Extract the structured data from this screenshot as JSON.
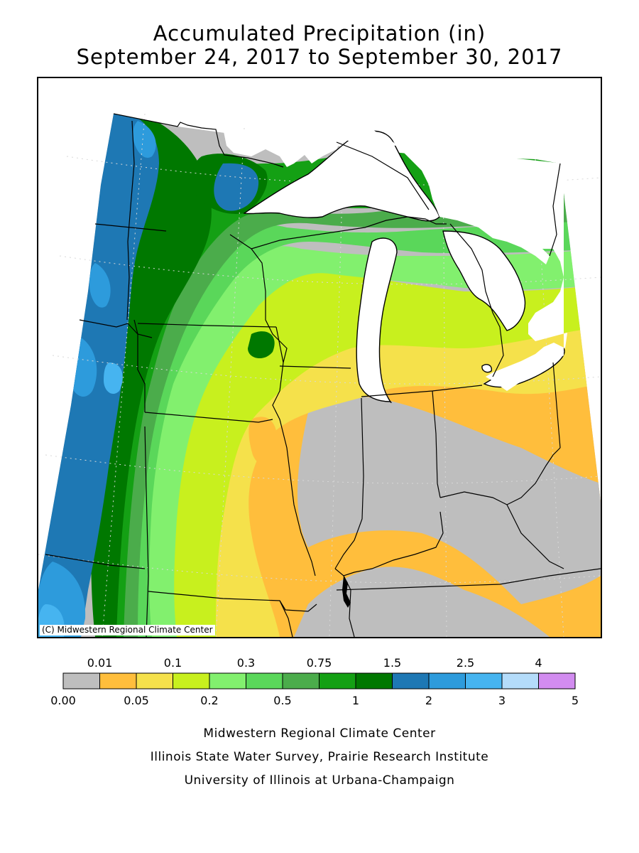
{
  "title": "Accumulated Precipitation (in)",
  "subtitle": "September 24, 2017 to September 30, 2017",
  "copyright": "(C) Midwestern Regional Climate Center",
  "legend": {
    "bins": [
      {
        "from": 0.0,
        "to": 0.01,
        "color": "#bebebe"
      },
      {
        "from": 0.01,
        "to": 0.05,
        "color": "#ffbe3c"
      },
      {
        "from": 0.05,
        "to": 0.1,
        "color": "#f5e14b"
      },
      {
        "from": 0.1,
        "to": 0.2,
        "color": "#c8f01e"
      },
      {
        "from": 0.2,
        "to": 0.3,
        "color": "#82f06e"
      },
      {
        "from": 0.3,
        "to": 0.5,
        "color": "#5ad75a"
      },
      {
        "from": 0.5,
        "to": 0.75,
        "color": "#4bac4b"
      },
      {
        "from": 0.75,
        "to": 1,
        "color": "#14a014"
      },
      {
        "from": 1,
        "to": 1.5,
        "color": "#007800"
      },
      {
        "from": 1.5,
        "to": 2,
        "color": "#1e78b4"
      },
      {
        "from": 2,
        "to": 2.5,
        "color": "#2d9bdc"
      },
      {
        "from": 2.5,
        "to": 3,
        "color": "#46b4f0"
      },
      {
        "from": 3,
        "to": 4,
        "color": "#b4dcfa"
      },
      {
        "from": 4,
        "to": 5,
        "color": "#d28cf0"
      }
    ],
    "top_labels": [
      "0.01",
      "0.1",
      "0.3",
      "0.75",
      "1.5",
      "2.5",
      "4"
    ],
    "bottom_labels": [
      "0.00",
      "0.05",
      "0.2",
      "0.5",
      "1",
      "2",
      "3",
      "5"
    ]
  },
  "credits": [
    "Midwestern Regional Climate Center",
    "Illinois State Water Survey, Prairie Research Institute",
    "University of Illinois at Urbana-Champaign"
  ],
  "colors": {
    "water": "#ffffff",
    "outside": "#ffffff",
    "boundary": "#000000",
    "graticule": "#d8d8d8"
  }
}
